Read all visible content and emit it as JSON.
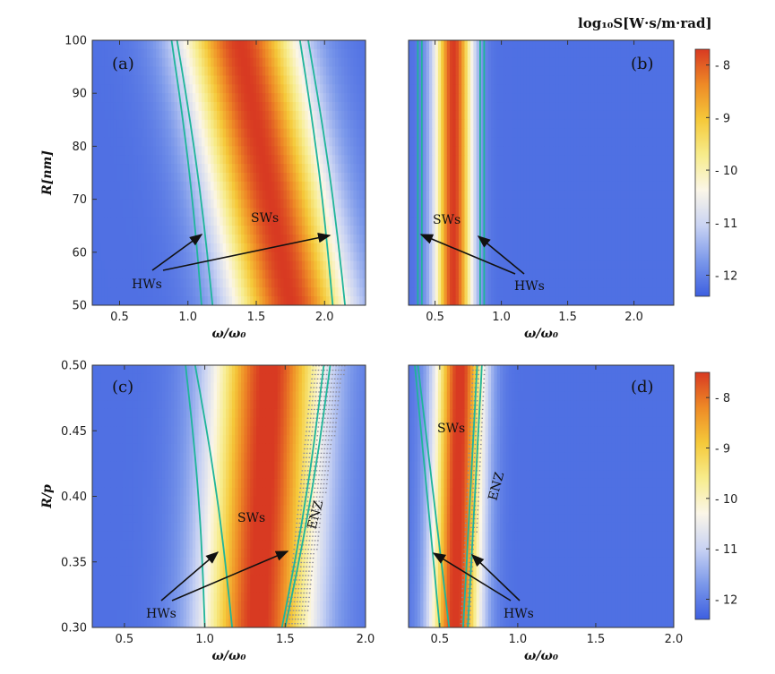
{
  "colorbar": {
    "title": "log₁₀S[W·s/m·rad]",
    "top": {
      "ticks": [
        -8,
        -9,
        -10,
        -11,
        -12
      ],
      "range": [
        -12.4,
        -7.7
      ]
    },
    "bottom": {
      "ticks": [
        -8,
        -9,
        -10,
        -11,
        -12
      ],
      "range": [
        -12.4,
        -7.5
      ]
    },
    "stops": [
      "#3d5fe0",
      "#7b98ea",
      "#c9d3f3",
      "#fbf6e8",
      "#f7ec8c",
      "#f5c93a",
      "#ee8a26",
      "#d83a22"
    ]
  },
  "annotations": {
    "surface_waves": "SWs",
    "hyperbolic_waves": "HWs",
    "epsilon_near_zero": "ENZ"
  },
  "chart_data": [
    {
      "type": "heatmap",
      "panel": "(a)",
      "xlabel": "ω/ω₀",
      "ylabel": "R[nm]",
      "xlim": [
        0.3,
        2.3
      ],
      "ylim": [
        50,
        100
      ],
      "xticks": [
        0.5,
        1.0,
        1.5,
        2.0
      ],
      "xtick_labels": [
        "0.5",
        "1.0",
        "1.5",
        "2.0"
      ],
      "yticks": [
        50,
        60,
        70,
        80,
        90,
        100
      ],
      "ytick_labels": [
        "50",
        "60",
        "70",
        "80",
        "90",
        "100"
      ],
      "peak_line": {
        "y": [
          100,
          50
        ],
        "x": [
          1.38,
          1.75
        ]
      },
      "band_width": 0.3,
      "background": -12.2,
      "peak": -7.7,
      "hw_contours": [
        {
          "y": [
            100,
            50
          ],
          "x": [
            0.88,
            1.1
          ]
        },
        {
          "y": [
            100,
            50
          ],
          "x": [
            0.92,
            1.18
          ]
        },
        {
          "y": [
            100,
            50
          ],
          "x": [
            1.82,
            2.06
          ]
        },
        {
          "y": [
            100,
            50
          ],
          "x": [
            1.88,
            2.15
          ]
        }
      ]
    },
    {
      "type": "heatmap",
      "panel": "(b)",
      "xlabel": "ω/ω₀",
      "ylabel": "",
      "xlim": [
        0.3,
        2.3
      ],
      "ylim": [
        50,
        100
      ],
      "xticks": [
        0.5,
        1.0,
        1.5,
        2.0
      ],
      "xtick_labels": [
        "0.5",
        "1.0",
        "1.5",
        "2.0"
      ],
      "peak_line": {
        "y": [
          100,
          50
        ],
        "x": [
          0.64,
          0.64
        ]
      },
      "band_width": 0.1,
      "background": -12.2,
      "peak": -7.7,
      "hw_contours": [
        {
          "y": [
            100,
            50
          ],
          "x": [
            0.37,
            0.37
          ]
        },
        {
          "y": [
            100,
            50
          ],
          "x": [
            0.4,
            0.4
          ]
        },
        {
          "y": [
            100,
            50
          ],
          "x": [
            0.84,
            0.84
          ]
        },
        {
          "y": [
            100,
            50
          ],
          "x": [
            0.87,
            0.87
          ]
        }
      ]
    },
    {
      "type": "heatmap",
      "panel": "(c)",
      "xlabel": "ω/ω₀",
      "ylabel": "R/p",
      "xlim": [
        0.3,
        2.0
      ],
      "ylim": [
        0.3,
        0.5
      ],
      "xticks": [
        0.5,
        1.0,
        1.5,
        2.0
      ],
      "xtick_labels": [
        "0.5",
        "1.0",
        "1.5",
        "2.0"
      ],
      "yticks": [
        0.3,
        0.35,
        0.4,
        0.45,
        0.5
      ],
      "ytick_labels": [
        "0.30",
        "0.35",
        "0.40",
        "0.45",
        "0.50"
      ],
      "peak_line": {
        "y": [
          0.5,
          0.3
        ],
        "x": [
          1.4,
          1.33
        ]
      },
      "band_width": 0.24,
      "background": -12.2,
      "peak": -7.6,
      "hw_contours": [
        {
          "y": [
            0.5,
            0.3
          ],
          "x": [
            0.88,
            1.0
          ]
        },
        {
          "y": [
            0.5,
            0.3
          ],
          "x": [
            0.94,
            1.17
          ]
        },
        {
          "y": [
            0.5,
            0.3
          ],
          "x": [
            1.74,
            1.48
          ]
        },
        {
          "y": [
            0.5,
            0.3
          ],
          "x": [
            1.78,
            1.5
          ]
        }
      ],
      "enz_band": {
        "y": [
          0.5,
          0.3
        ],
        "x_left": [
          1.67,
          1.5
        ],
        "x_right": [
          1.87,
          1.62
        ]
      }
    },
    {
      "type": "heatmap",
      "panel": "(d)",
      "xlabel": "ω/ω₀",
      "ylabel": "",
      "xlim": [
        0.3,
        2.0
      ],
      "ylim": [
        0.3,
        0.5
      ],
      "xticks": [
        0.5,
        1.0,
        1.5,
        2.0
      ],
      "xtick_labels": [
        "0.5",
        "1.0",
        "1.5",
        "2.0"
      ],
      "peak_line": {
        "y": [
          0.5,
          0.3
        ],
        "x": [
          0.63,
          0.6
        ]
      },
      "band_width": 0.11,
      "background": -12.2,
      "peak": -7.6,
      "hw_contours": [
        {
          "y": [
            0.5,
            0.3
          ],
          "x": [
            0.34,
            0.5
          ]
        },
        {
          "y": [
            0.5,
            0.3
          ],
          "x": [
            0.36,
            0.56
          ]
        },
        {
          "y": [
            0.5,
            0.3
          ],
          "x": [
            0.74,
            0.65
          ]
        },
        {
          "y": [
            0.5,
            0.3
          ],
          "x": [
            0.77,
            0.68
          ]
        }
      ],
      "enz_band": {
        "y": [
          0.5,
          0.3
        ],
        "x_left": [
          0.71,
          0.63
        ],
        "x_right": [
          0.79,
          0.7
        ]
      }
    }
  ]
}
